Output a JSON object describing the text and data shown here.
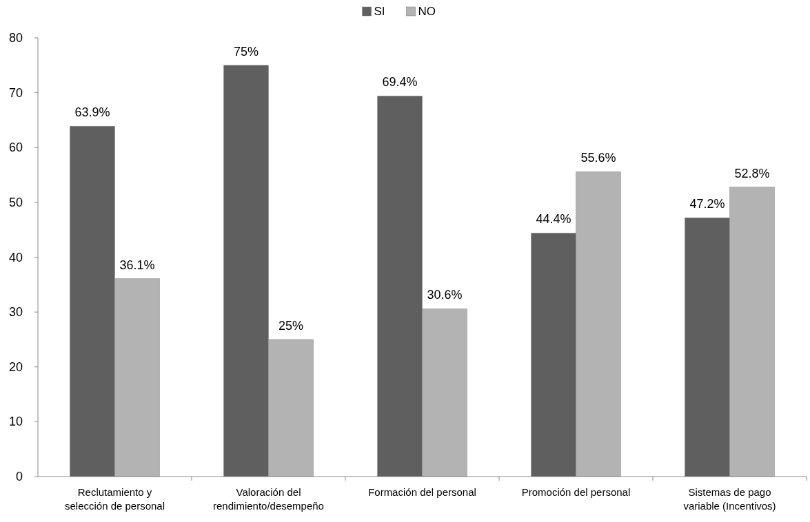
{
  "chart_data": {
    "type": "bar",
    "categories": [
      "Reclutamiento y selección de personal",
      "Valoración del rendimiento/desempeño",
      "Formación del personal",
      "Promoción del personal",
      "Sistemas de pago variable (Incentivos)"
    ],
    "series": [
      {
        "name": "SI",
        "color": "#5f5f5f",
        "values": [
          63.9,
          75,
          69.4,
          44.4,
          47.2
        ],
        "value_labels": [
          "63.9%",
          "75%",
          "69.4%",
          "44.4%",
          "47.2%"
        ]
      },
      {
        "name": "NO",
        "color": "#b3b3b3",
        "values": [
          36.1,
          25,
          30.6,
          55.6,
          52.8
        ],
        "value_labels": [
          "36.1%",
          "25%",
          "30.6%",
          "55.6%",
          "52.8%"
        ]
      }
    ],
    "ylim": [
      0,
      80
    ],
    "yticks": [
      0,
      10,
      20,
      30,
      40,
      50,
      60,
      70,
      80
    ],
    "legend": "top",
    "grid": false
  }
}
